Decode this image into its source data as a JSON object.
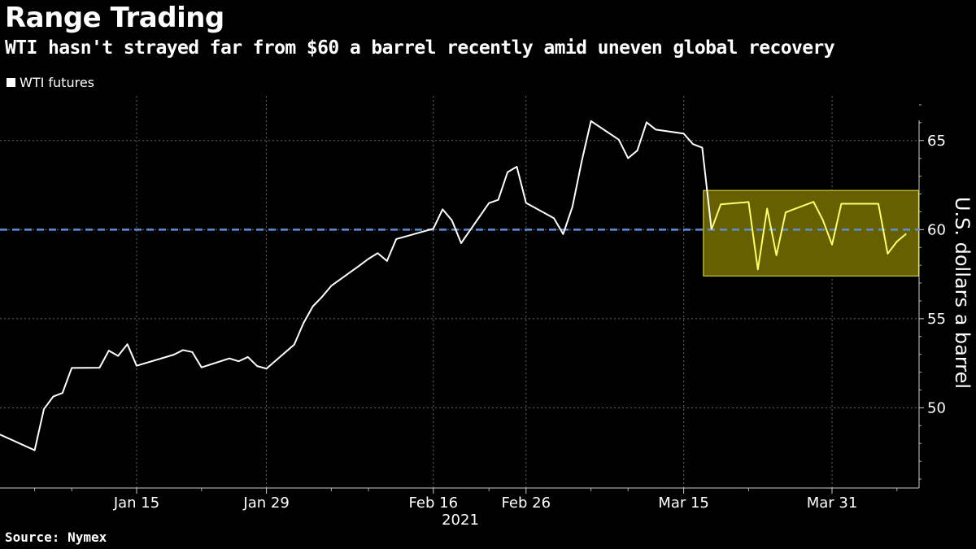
{
  "header": {
    "title": "Range Trading",
    "subtitle": "WTI hasn't strayed far from $60 a barrel recently amid uneven global recovery"
  },
  "legend": {
    "label": "WTI futures"
  },
  "footer": {
    "source": "Source: Nymex"
  },
  "colors": {
    "background": "#000000",
    "line": "#ffffff",
    "reference_line": "#5b8fd9",
    "highlight_fill": "#666000",
    "highlight_stroke": "#e6e64c",
    "highlight_line": "#ffff66",
    "grid": "#666666"
  },
  "chart_data": {
    "type": "line",
    "title": "Range Trading",
    "ylabel": "U.S. dollars a barrel",
    "xlabel": "2021",
    "ylim": [
      45.5,
      67.5
    ],
    "y_ticks": [
      50,
      55,
      60,
      65
    ],
    "x_ticks": [
      "Jan 15",
      "Jan 29",
      "Feb 16",
      "Feb 26",
      "Mar 15",
      "Mar 31"
    ],
    "year_label": "2021",
    "reference_line": {
      "value": 60,
      "style": "dashed"
    },
    "highlight_range": {
      "from": "Mar 18",
      "to": "Apr 6",
      "ymin": 57.4,
      "ymax": 62.2
    },
    "grid": true,
    "series": [
      {
        "name": "WTI futures",
        "points": [
          [
            "Jan 4",
            47.62
          ],
          [
            "Jan 5",
            49.93
          ],
          [
            "Jan 6",
            50.63
          ],
          [
            "Jan 7",
            50.83
          ],
          [
            "Jan 8",
            52.24
          ],
          [
            "Jan 11",
            52.25
          ],
          [
            "Jan 12",
            53.21
          ],
          [
            "Jan 13",
            52.91
          ],
          [
            "Jan 14",
            53.57
          ],
          [
            "Jan 15",
            52.36
          ],
          [
            "Jan 19",
            52.98
          ],
          [
            "Jan 20",
            53.24
          ],
          [
            "Jan 21",
            53.13
          ],
          [
            "Jan 22",
            52.27
          ],
          [
            "Jan 25",
            52.77
          ],
          [
            "Jan 26",
            52.61
          ],
          [
            "Jan 27",
            52.85
          ],
          [
            "Jan 28",
            52.34
          ],
          [
            "Jan 29",
            52.2
          ],
          [
            "Feb 1",
            53.55
          ],
          [
            "Feb 2",
            54.76
          ],
          [
            "Feb 3",
            55.69
          ],
          [
            "Feb 4",
            56.23
          ],
          [
            "Feb 5",
            56.85
          ],
          [
            "Feb 8",
            57.97
          ],
          [
            "Feb 9",
            58.36
          ],
          [
            "Feb 10",
            58.68
          ],
          [
            "Feb 11",
            58.24
          ],
          [
            "Feb 12",
            59.47
          ],
          [
            "Feb 16",
            60.05
          ],
          [
            "Feb 17",
            61.14
          ],
          [
            "Feb 18",
            60.52
          ],
          [
            "Feb 19",
            59.24
          ],
          [
            "Feb 22",
            61.49
          ],
          [
            "Feb 23",
            61.67
          ],
          [
            "Feb 24",
            63.22
          ],
          [
            "Feb 25",
            63.53
          ],
          [
            "Feb 26",
            61.5
          ],
          [
            "Mar 1",
            60.64
          ],
          [
            "Mar 2",
            59.75
          ],
          [
            "Mar 3",
            61.28
          ],
          [
            "Mar 4",
            63.83
          ],
          [
            "Mar 5",
            66.09
          ],
          [
            "Mar 8",
            65.05
          ],
          [
            "Mar 9",
            64.01
          ],
          [
            "Mar 10",
            64.44
          ],
          [
            "Mar 11",
            66.02
          ],
          [
            "Mar 12",
            65.61
          ],
          [
            "Mar 15",
            65.39
          ],
          [
            "Mar 16",
            64.8
          ],
          [
            "Mar 17",
            64.6
          ],
          [
            "Mar 18",
            60.0
          ],
          [
            "Mar 19",
            61.42
          ],
          [
            "Mar 22",
            61.55
          ],
          [
            "Mar 23",
            57.76
          ],
          [
            "Mar 24",
            61.18
          ],
          [
            "Mar 25",
            58.56
          ],
          [
            "Mar 26",
            60.97
          ],
          [
            "Mar 29",
            61.56
          ],
          [
            "Mar 30",
            60.55
          ],
          [
            "Mar 31",
            59.16
          ],
          [
            "Apr 1",
            61.45
          ],
          [
            "Apr 5",
            61.45
          ],
          [
            "Apr 6",
            58.65
          ],
          [
            "Apr 7",
            59.33
          ],
          [
            "Apr 8",
            59.77
          ]
        ]
      }
    ]
  }
}
